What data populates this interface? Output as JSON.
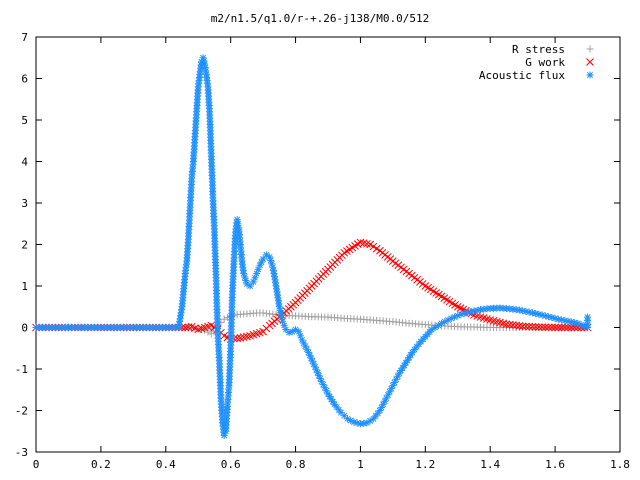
{
  "chart_data": {
    "type": "scatter",
    "title": "m2/n1.5/q1.0/r-+.26-j138/M0.0/512",
    "xlabel": "",
    "ylabel": "",
    "xlim": [
      0,
      1.8
    ],
    "ylim": [
      -3,
      7
    ],
    "xticks": [
      "0",
      "0.2",
      "0.4",
      "0.6",
      "0.8",
      "1",
      "1.2",
      "1.4",
      "1.6",
      "1.8"
    ],
    "yticks": [
      "-3",
      "-2",
      "-1",
      "0",
      "1",
      "2",
      "3",
      "4",
      "5",
      "6",
      "7"
    ],
    "grid": false,
    "legend_position": "top-right",
    "series": [
      {
        "name": "R stress",
        "marker": "plus",
        "color": "#a0a0a0",
        "points": [
          [
            0.0,
            0.0
          ],
          [
            0.1,
            0.0
          ],
          [
            0.2,
            0.0
          ],
          [
            0.3,
            0.0
          ],
          [
            0.4,
            0.0
          ],
          [
            0.46,
            0.0
          ],
          [
            0.5,
            -0.03
          ],
          [
            0.52,
            -0.07
          ],
          [
            0.54,
            -0.15
          ],
          [
            0.56,
            0.05
          ],
          [
            0.58,
            0.2
          ],
          [
            0.6,
            0.28
          ],
          [
            0.62,
            0.31
          ],
          [
            0.65,
            0.33
          ],
          [
            0.68,
            0.35
          ],
          [
            0.7,
            0.35
          ],
          [
            0.72,
            0.33
          ],
          [
            0.75,
            0.3
          ],
          [
            0.8,
            0.28
          ],
          [
            0.85,
            0.26
          ],
          [
            0.9,
            0.25
          ],
          [
            0.95,
            0.22
          ],
          [
            1.0,
            0.2
          ],
          [
            1.05,
            0.17
          ],
          [
            1.1,
            0.14
          ],
          [
            1.15,
            0.1
          ],
          [
            1.2,
            0.07
          ],
          [
            1.25,
            0.04
          ],
          [
            1.3,
            0.02
          ],
          [
            1.35,
            0.01
          ],
          [
            1.4,
            0.0
          ],
          [
            1.5,
            0.0
          ],
          [
            1.6,
            0.0
          ],
          [
            1.7,
            0.0
          ]
        ]
      },
      {
        "name": "G work",
        "marker": "cross",
        "color": "#ff0000",
        "points": [
          [
            0.0,
            0.0
          ],
          [
            0.1,
            0.0
          ],
          [
            0.2,
            0.0
          ],
          [
            0.3,
            0.0
          ],
          [
            0.4,
            0.0
          ],
          [
            0.46,
            0.0
          ],
          [
            0.48,
            0.02
          ],
          [
            0.5,
            -0.05
          ],
          [
            0.52,
            0.0
          ],
          [
            0.54,
            0.05
          ],
          [
            0.56,
            -0.05
          ],
          [
            0.58,
            -0.2
          ],
          [
            0.6,
            -0.28
          ],
          [
            0.63,
            -0.25
          ],
          [
            0.66,
            -0.2
          ],
          [
            0.7,
            -0.1
          ],
          [
            0.72,
            0.05
          ],
          [
            0.75,
            0.25
          ],
          [
            0.8,
            0.6
          ],
          [
            0.85,
            1.0
          ],
          [
            0.9,
            1.4
          ],
          [
            0.95,
            1.8
          ],
          [
            1.0,
            2.05
          ],
          [
            1.03,
            2.0
          ],
          [
            1.06,
            1.85
          ],
          [
            1.1,
            1.6
          ],
          [
            1.15,
            1.3
          ],
          [
            1.2,
            1.0
          ],
          [
            1.25,
            0.75
          ],
          [
            1.3,
            0.5
          ],
          [
            1.35,
            0.3
          ],
          [
            1.4,
            0.18
          ],
          [
            1.45,
            0.08
          ],
          [
            1.5,
            0.03
          ],
          [
            1.55,
            0.01
          ],
          [
            1.6,
            0.0
          ],
          [
            1.65,
            0.0
          ],
          [
            1.7,
            0.0
          ]
        ]
      },
      {
        "name": "Acoustic flux",
        "marker": "star",
        "color": "#1e90ff",
        "points": [
          [
            0.0,
            0.0
          ],
          [
            0.05,
            0.0
          ],
          [
            0.1,
            0.0
          ],
          [
            0.15,
            0.0
          ],
          [
            0.2,
            0.0
          ],
          [
            0.25,
            0.0
          ],
          [
            0.3,
            0.0
          ],
          [
            0.35,
            0.0
          ],
          [
            0.4,
            0.0
          ],
          [
            0.44,
            0.0
          ],
          [
            0.45,
            0.5
          ],
          [
            0.46,
            1.3
          ],
          [
            0.465,
            1.6
          ],
          [
            0.47,
            2.2
          ],
          [
            0.475,
            2.9
          ],
          [
            0.48,
            3.6
          ],
          [
            0.485,
            4.0
          ],
          [
            0.49,
            4.6
          ],
          [
            0.495,
            5.2
          ],
          [
            0.5,
            5.8
          ],
          [
            0.505,
            6.1
          ],
          [
            0.51,
            6.4
          ],
          [
            0.515,
            6.5
          ],
          [
            0.52,
            6.35
          ],
          [
            0.525,
            6.1
          ],
          [
            0.53,
            5.8
          ],
          [
            0.535,
            5.2
          ],
          [
            0.54,
            4.2
          ],
          [
            0.545,
            3.2
          ],
          [
            0.55,
            2.3
          ],
          [
            0.555,
            1.2
          ],
          [
            0.56,
            -0.1
          ],
          [
            0.565,
            -0.8
          ],
          [
            0.57,
            -1.7
          ],
          [
            0.575,
            -2.3
          ],
          [
            0.58,
            -2.6
          ],
          [
            0.585,
            -2.5
          ],
          [
            0.59,
            -1.9
          ],
          [
            0.595,
            -1.4
          ],
          [
            0.6,
            -0.5
          ],
          [
            0.605,
            0.8
          ],
          [
            0.61,
            1.6
          ],
          [
            0.615,
            2.3
          ],
          [
            0.62,
            2.6
          ],
          [
            0.625,
            2.4
          ],
          [
            0.63,
            2.0
          ],
          [
            0.635,
            1.6
          ],
          [
            0.64,
            1.3
          ],
          [
            0.65,
            1.05
          ],
          [
            0.66,
            1.0
          ],
          [
            0.67,
            1.1
          ],
          [
            0.68,
            1.3
          ],
          [
            0.69,
            1.5
          ],
          [
            0.7,
            1.65
          ],
          [
            0.71,
            1.75
          ],
          [
            0.72,
            1.7
          ],
          [
            0.73,
            1.45
          ],
          [
            0.74,
            1.0
          ],
          [
            0.75,
            0.5
          ],
          [
            0.76,
            0.15
          ],
          [
            0.77,
            -0.05
          ],
          [
            0.78,
            -0.12
          ],
          [
            0.79,
            -0.1
          ],
          [
            0.8,
            -0.05
          ],
          [
            0.81,
            -0.1
          ],
          [
            0.82,
            -0.3
          ],
          [
            0.84,
            -0.6
          ],
          [
            0.86,
            -0.95
          ],
          [
            0.88,
            -1.3
          ],
          [
            0.9,
            -1.6
          ],
          [
            0.92,
            -1.85
          ],
          [
            0.94,
            -2.05
          ],
          [
            0.96,
            -2.2
          ],
          [
            0.98,
            -2.28
          ],
          [
            1.0,
            -2.32
          ],
          [
            1.02,
            -2.3
          ],
          [
            1.04,
            -2.2
          ],
          [
            1.06,
            -2.0
          ],
          [
            1.08,
            -1.7
          ],
          [
            1.1,
            -1.4
          ],
          [
            1.12,
            -1.1
          ],
          [
            1.14,
            -0.85
          ],
          [
            1.16,
            -0.6
          ],
          [
            1.18,
            -0.4
          ],
          [
            1.2,
            -0.22
          ],
          [
            1.22,
            -0.05
          ],
          [
            1.25,
            0.1
          ],
          [
            1.28,
            0.22
          ],
          [
            1.31,
            0.32
          ],
          [
            1.34,
            0.38
          ],
          [
            1.37,
            0.43
          ],
          [
            1.4,
            0.46
          ],
          [
            1.43,
            0.47
          ],
          [
            1.46,
            0.45
          ],
          [
            1.49,
            0.42
          ],
          [
            1.52,
            0.37
          ],
          [
            1.55,
            0.32
          ],
          [
            1.58,
            0.26
          ],
          [
            1.61,
            0.2
          ],
          [
            1.64,
            0.15
          ],
          [
            1.67,
            0.1
          ],
          [
            1.7,
            0.0
          ],
          [
            1.7,
            0.25
          ]
        ]
      }
    ]
  }
}
